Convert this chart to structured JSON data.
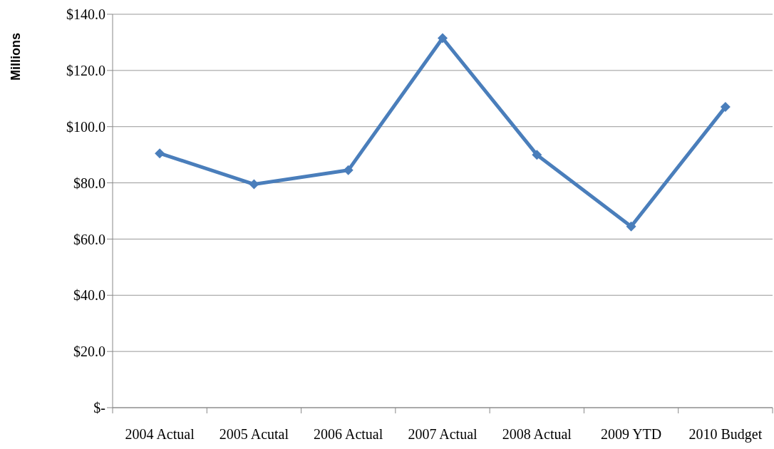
{
  "chart_data": {
    "type": "line",
    "ylabel": "Millions",
    "categories": [
      "2004 Actual",
      "2005 Acutal",
      "2006 Actual",
      "2007 Actual",
      "2008 Actual",
      "2009 YTD",
      "2010 Budget"
    ],
    "series": [
      {
        "color": "#4a7ebb",
        "values": [
          90.5,
          79.5,
          84.5,
          131.5,
          90,
          64.5,
          107
        ]
      }
    ],
    "ylim": [
      0,
      140
    ],
    "yticks": [
      {
        "value": 0,
        "label": "$-"
      },
      {
        "value": 20,
        "label": "$20.0"
      },
      {
        "value": 40,
        "label": "$40.0"
      },
      {
        "value": 60,
        "label": "$60.0"
      },
      {
        "value": 80,
        "label": "$80.0"
      },
      {
        "value": 100,
        "label": "$100.0"
      },
      {
        "value": 120,
        "label": "$120.0"
      },
      {
        "value": 140,
        "label": "$140.0"
      }
    ],
    "grid": "y",
    "legend": false,
    "marker": "diamond",
    "line_style": "solid"
  }
}
